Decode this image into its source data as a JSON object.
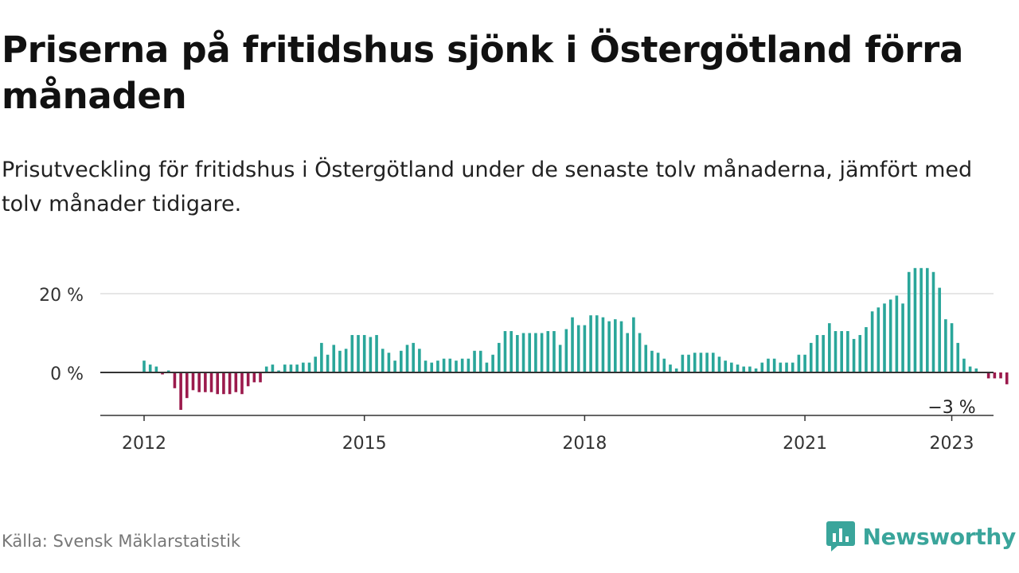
{
  "title": "Priserna på fritidshus sjönk i Östergötland förra månaden",
  "subtitle": "Prisutveckling för fritidshus i Östergötland under de senaste tolv månaderna, jämfört med tolv månader tidigare.",
  "source": "Källa: Svensk Mäklarstatistik",
  "brand": {
    "name": "Newsworthy",
    "logo_icon": "newsworthy-logo-icon"
  },
  "colors": {
    "positive": "#2aa69a",
    "negative": "#9b1a4c",
    "axis": "#333333",
    "grid": "#dddddd",
    "brand": "#3aa59b"
  },
  "chart_data": {
    "type": "bar",
    "x_start": "2012-01",
    "x_ticks": [
      "2012",
      "2015",
      "2018",
      "2021",
      "2023"
    ],
    "y_ticks": [
      {
        "value": 0,
        "label": "0 %"
      },
      {
        "value": 20,
        "label": "20 %"
      }
    ],
    "ylim": [
      -11,
      27
    ],
    "grid": true,
    "annotation": {
      "label": "−3 %",
      "value": -3,
      "date": "2023-01"
    },
    "values": [
      3,
      2,
      1.5,
      -0.5,
      0.5,
      -4,
      -9.5,
      -6.5,
      -4.5,
      -5,
      -5,
      -5,
      -5.5,
      -5.5,
      -5.5,
      -5,
      -5.5,
      -3.5,
      -2.5,
      -2.5,
      1.5,
      2,
      0.5,
      2,
      2,
      2,
      2.5,
      2.5,
      4,
      7.5,
      4.5,
      7,
      5.5,
      6,
      9.5,
      9.5,
      9.5,
      9,
      9.5,
      6,
      5,
      3,
      5.5,
      7,
      7.5,
      6,
      3,
      2.5,
      3,
      3.5,
      3.5,
      3,
      3.5,
      3.5,
      5.5,
      5.5,
      2.5,
      4.5,
      7.5,
      10.5,
      10.5,
      9.5,
      10,
      10,
      10,
      10,
      10.5,
      10.5,
      7,
      11,
      14,
      12,
      12,
      14.5,
      14.5,
      14,
      13,
      13.5,
      13,
      10,
      14,
      10,
      7,
      5.5,
      5,
      3.5,
      2,
      1,
      4.5,
      4.5,
      5,
      5,
      5,
      5,
      4,
      3,
      2.5,
      2,
      1.5,
      1.5,
      1,
      2.5,
      3.5,
      3.5,
      2.5,
      2.5,
      2.5,
      4.5,
      4.5,
      7.5,
      9.5,
      9.5,
      12.5,
      10.5,
      10.5,
      10.5,
      8.5,
      9.5,
      11.5,
      15.5,
      16.5,
      17.5,
      18.5,
      19.5,
      17.5,
      25.5,
      26.5,
      26.5,
      26.5,
      25.5,
      21.5,
      13.5,
      12.5,
      7.5,
      3.5,
      1.5,
      1,
      0,
      -1.5,
      -1.5,
      -1.5,
      -3
    ]
  }
}
